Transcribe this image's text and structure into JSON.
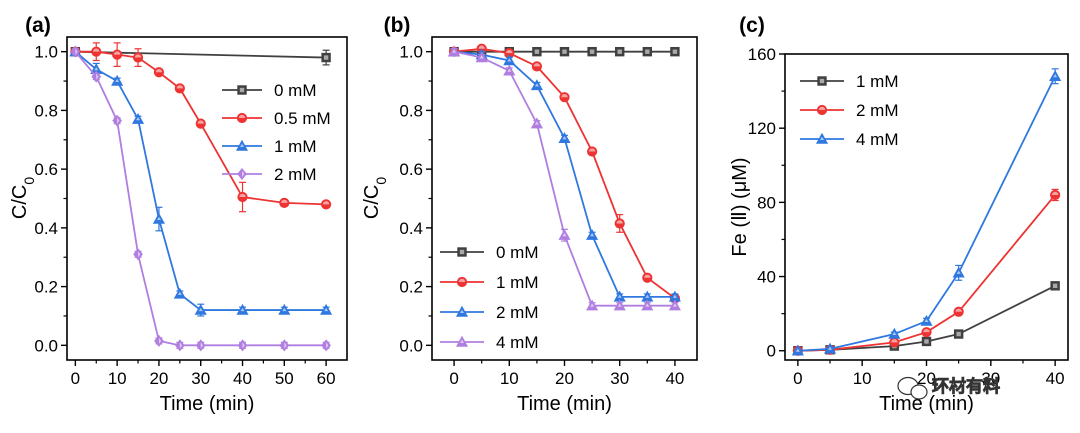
{
  "watermark": {
    "text": "环材有料",
    "icon": "wechat-logo-icon"
  },
  "chart_data": [
    {
      "panel_label": "(a)",
      "type": "line",
      "xlabel": "Time (min)",
      "ylabel_main": "C/C",
      "ylabel_sub": "0",
      "xlim": [
        -2,
        65
      ],
      "ylim": [
        -0.05,
        1.05
      ],
      "xticks": [
        0,
        10,
        20,
        30,
        40,
        50,
        60
      ],
      "xtick_labels": [
        "0",
        "10",
        "20",
        "30",
        "40",
        "50",
        "60"
      ],
      "yticks": [
        0.0,
        0.2,
        0.4,
        0.6,
        0.8,
        1.0
      ],
      "ytick_labels": [
        "0.0",
        "0.2",
        "0.4",
        "0.6",
        "0.8",
        "1.0"
      ],
      "legend_position": "top-right",
      "series": [
        {
          "name": "0 mM",
          "color": "#404040",
          "marker": "square",
          "x": [
            0,
            60
          ],
          "y": [
            1.0,
            0.98
          ],
          "err": [
            0.01,
            0.025
          ]
        },
        {
          "name": "0.5 mM",
          "color": "#ee3333",
          "marker": "circle",
          "x": [
            0,
            5,
            10,
            15,
            20,
            25,
            30,
            40,
            50,
            60
          ],
          "y": [
            1.0,
            1.0,
            0.99,
            0.98,
            0.93,
            0.875,
            0.755,
            0.505,
            0.485,
            0.48
          ],
          "err": [
            0.01,
            0.03,
            0.04,
            0.03,
            0.01,
            0.01,
            0.01,
            0.05,
            0.01,
            0.01
          ]
        },
        {
          "name": "1 mM",
          "color": "#2f78e0",
          "marker": "triangle",
          "x": [
            0,
            5,
            10,
            15,
            20,
            25,
            30,
            40,
            50,
            60
          ],
          "y": [
            1.0,
            0.94,
            0.9,
            0.77,
            0.43,
            0.175,
            0.12,
            0.12,
            0.12,
            0.12
          ],
          "err": [
            0.01,
            0.02,
            0.01,
            0.01,
            0.04,
            0.01,
            0.02,
            0.01,
            0.01,
            0.01
          ]
        },
        {
          "name": "2 mM",
          "color": "#b07ee0",
          "marker": "diamond",
          "x": [
            0,
            5,
            10,
            15,
            20,
            25,
            30,
            40,
            50,
            60
          ],
          "y": [
            1.0,
            0.915,
            0.765,
            0.31,
            0.015,
            0.0,
            0.0,
            0.0,
            0.0,
            0.0
          ],
          "err": [
            0.01,
            0.01,
            0.01,
            0.01,
            0.01,
            0.01,
            0.01,
            0.01,
            0.01,
            0.01
          ]
        }
      ]
    },
    {
      "panel_label": "(b)",
      "type": "line",
      "xlabel": "Time (min)",
      "ylabel_main": "C/C",
      "ylabel_sub": "0",
      "xlim": [
        -4,
        44
      ],
      "ylim": [
        -0.05,
        1.05
      ],
      "xticks": [
        0,
        10,
        20,
        30,
        40
      ],
      "xtick_labels": [
        "0",
        "10",
        "20",
        "30",
        "40"
      ],
      "yticks": [
        0.0,
        0.2,
        0.4,
        0.6,
        0.8,
        1.0
      ],
      "ytick_labels": [
        "0.0",
        "0.2",
        "0.4",
        "0.6",
        "0.8",
        "1.0"
      ],
      "legend_position": "bottom-left",
      "series": [
        {
          "name": "0 mM",
          "color": "#404040",
          "marker": "square",
          "x": [
            0,
            5,
            10,
            15,
            20,
            25,
            30,
            35,
            40
          ],
          "y": [
            1.0,
            1.0,
            1.0,
            1.0,
            1.0,
            1.0,
            1.0,
            1.0,
            1.0
          ],
          "err": [
            0,
            0,
            0,
            0,
            0,
            0,
            0,
            0,
            0
          ]
        },
        {
          "name": "1 mM",
          "color": "#ee3333",
          "marker": "circle",
          "x": [
            0,
            5,
            10,
            15,
            20,
            25,
            30,
            35,
            40
          ],
          "y": [
            1.0,
            1.01,
            0.995,
            0.95,
            0.845,
            0.66,
            0.415,
            0.23,
            0.16
          ],
          "err": [
            0.01,
            0.01,
            0.01,
            0.01,
            0.01,
            0.01,
            0.03,
            0.01,
            0.01
          ]
        },
        {
          "name": "2 mM",
          "color": "#2f78e0",
          "marker": "triangle",
          "x": [
            0,
            5,
            10,
            15,
            20,
            25,
            30,
            35,
            40
          ],
          "y": [
            1.0,
            0.99,
            0.97,
            0.885,
            0.705,
            0.375,
            0.165,
            0.165,
            0.165
          ],
          "err": [
            0.01,
            0.01,
            0.01,
            0.01,
            0.01,
            0.01,
            0.01,
            0.01,
            0.01
          ]
        },
        {
          "name": "4 mM",
          "color": "#b07ee0",
          "marker": "triangle",
          "x": [
            0,
            5,
            10,
            15,
            20,
            25,
            30,
            35,
            40
          ],
          "y": [
            1.0,
            0.98,
            0.935,
            0.755,
            0.375,
            0.135,
            0.135,
            0.135,
            0.135
          ],
          "err": [
            0.01,
            0.01,
            0.01,
            0.01,
            0.02,
            0.01,
            0.01,
            0.01,
            0.01
          ]
        }
      ]
    },
    {
      "panel_label": "(c)",
      "type": "line",
      "xlabel": "Time (min)",
      "ylabel_main": "Fe (Ⅱ) (μM)",
      "ylabel_sub": "",
      "xlim": [
        -2,
        42
      ],
      "ylim": [
        -5,
        160
      ],
      "xticks": [
        0,
        10,
        20,
        30,
        40
      ],
      "xtick_labels": [
        "0",
        "10",
        "20",
        "30",
        "40"
      ],
      "yticks": [
        0,
        40,
        80,
        120,
        160
      ],
      "ytick_labels": [
        "0",
        "40",
        "80",
        "120",
        "160"
      ],
      "legend_position": "top-left",
      "series": [
        {
          "name": "1 mM",
          "color": "#404040",
          "marker": "square",
          "x": [
            0,
            5,
            15,
            20,
            25,
            40
          ],
          "y": [
            0,
            0.5,
            2.5,
            5,
            9,
            35
          ],
          "err": [
            1,
            1,
            1,
            1,
            1,
            1.5
          ]
        },
        {
          "name": "2 mM",
          "color": "#ee3333",
          "marker": "circle",
          "x": [
            0,
            5,
            15,
            20,
            25,
            40
          ],
          "y": [
            0,
            0.5,
            4.5,
            10,
            21,
            84
          ],
          "err": [
            1,
            1,
            1,
            1,
            1.5,
            3
          ]
        },
        {
          "name": "4 mM",
          "color": "#2f78e0",
          "marker": "triangle",
          "x": [
            0,
            5,
            15,
            20,
            25,
            40
          ],
          "y": [
            0,
            1,
            9,
            16,
            42,
            148
          ],
          "err": [
            1,
            1,
            1,
            1.5,
            4,
            4
          ]
        }
      ]
    }
  ]
}
